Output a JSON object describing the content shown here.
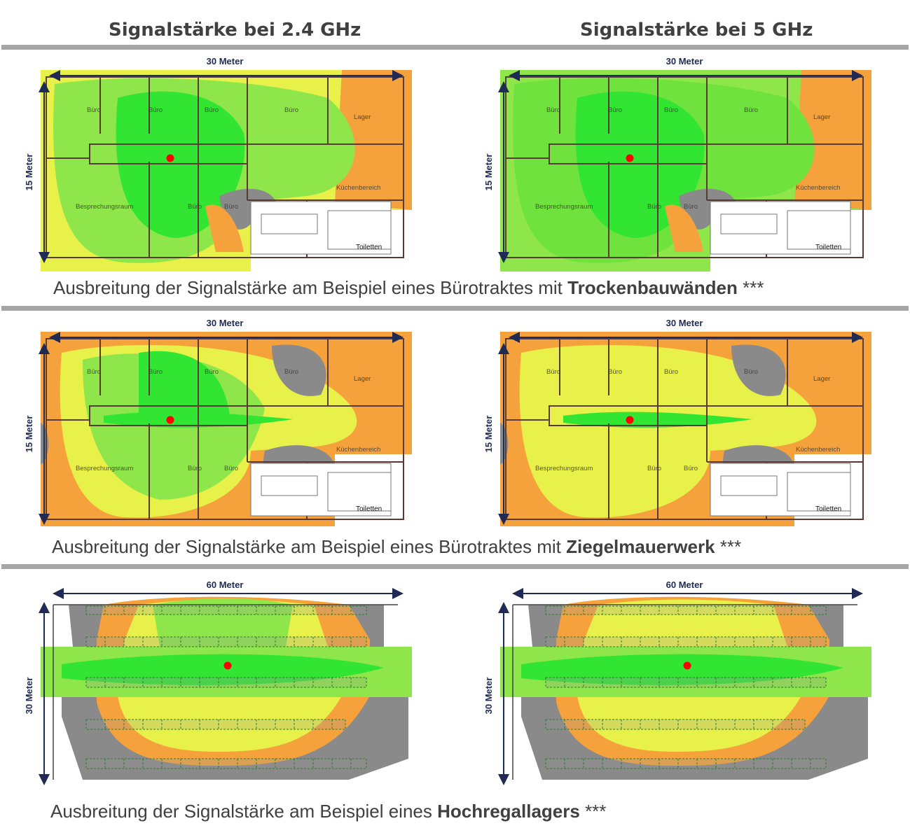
{
  "columns": {
    "left_title": "Signalstärke bei 2.4 GHz",
    "right_title": "Signalstärke bei 5 GHz"
  },
  "rows": [
    {
      "caption_prefix": "Ausbreitung der Signalstärke am Beispiel eines Bürotraktes mit ",
      "caption_bold": "Trockenbauwänden",
      "caption_suffix": " ***",
      "width_label": "30 Meter",
      "height_label": "15 Meter",
      "rooms": [
        "Büro",
        "Büro",
        "Büro",
        "Büro",
        "Lager",
        "Küchenbereich",
        "Besprechungsraum",
        "Büro",
        "Büro",
        "Toiletten"
      ]
    },
    {
      "caption_prefix": "Ausbreitung der Signalstärke am Beispiel eines Bürotraktes mit ",
      "caption_bold": "Ziegelmauerwerk",
      "caption_suffix": " ***",
      "width_label": "30 Meter",
      "height_label": "15 Meter",
      "rooms": [
        "Büro",
        "Büro",
        "Büro",
        "Büro",
        "Lager",
        "Küchenbereich",
        "Besprechungsraum",
        "Büro",
        "Büro",
        "Toiletten"
      ]
    },
    {
      "caption_prefix": "Ausbreitung der Signalstärke am Beispiel eines ",
      "caption_bold": "Hochregallagers",
      "caption_suffix": " ***",
      "width_label": "60 Meter",
      "height_label": "30 Meter"
    }
  ],
  "colors": {
    "strong": "#33e533",
    "good": "#8fe64a",
    "medium": "#e8f04a",
    "weak": "#f5a23c",
    "none": "#8a8a8a",
    "access_point": "#ff0000",
    "dimension": "#1f2a55"
  }
}
